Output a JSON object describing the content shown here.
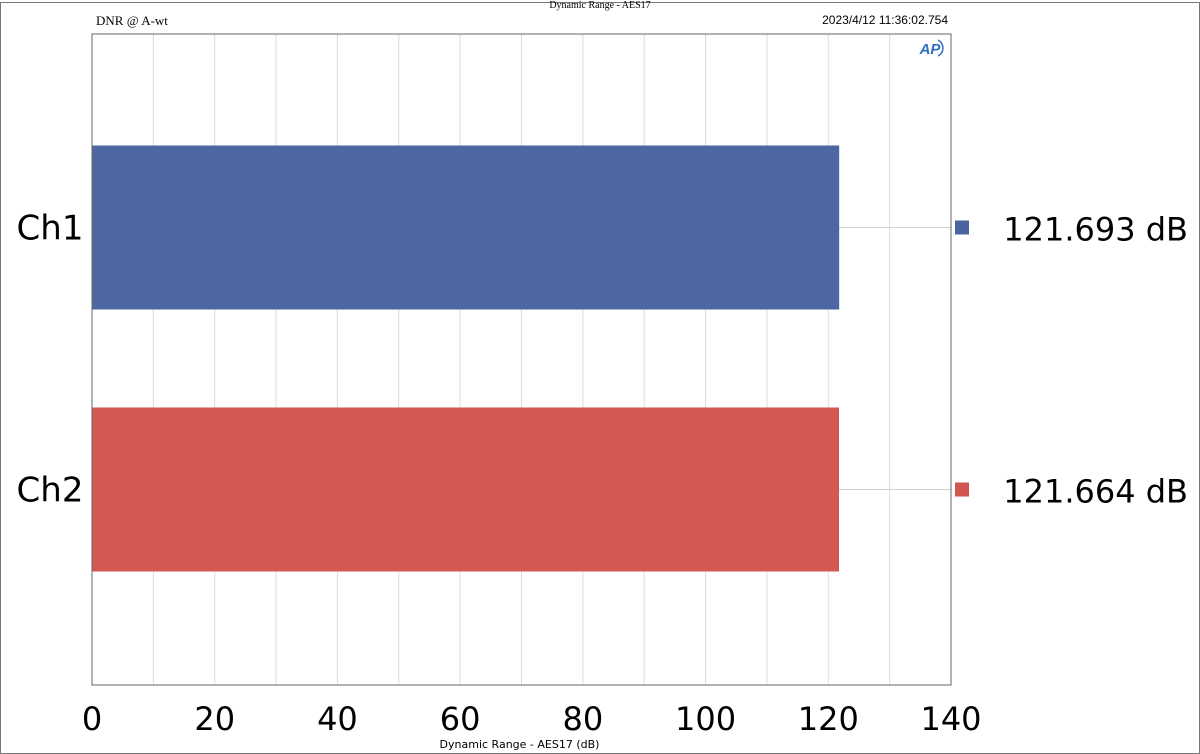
{
  "chart_data": {
    "type": "bar",
    "orientation": "horizontal",
    "title": "Dynamic Range - AES17",
    "subtitle": "DNR @ A-wt",
    "timestamp": "2023/4/12 11:36:02.754",
    "xlabel": "Dynamic Range - AES17 (dB)",
    "ylabel": "",
    "xlim": [
      0,
      140
    ],
    "xticks": [
      0,
      20,
      40,
      60,
      80,
      100,
      120,
      140
    ],
    "grid": true,
    "categories": [
      "Ch1",
      "Ch2"
    ],
    "values": [
      121.693,
      121.664
    ],
    "value_labels": [
      "121.693 dB",
      "121.664 dB"
    ],
    "colors": [
      "#4a64a0",
      "#d2564f"
    ],
    "legend_placement": "right",
    "logo": "AP"
  }
}
